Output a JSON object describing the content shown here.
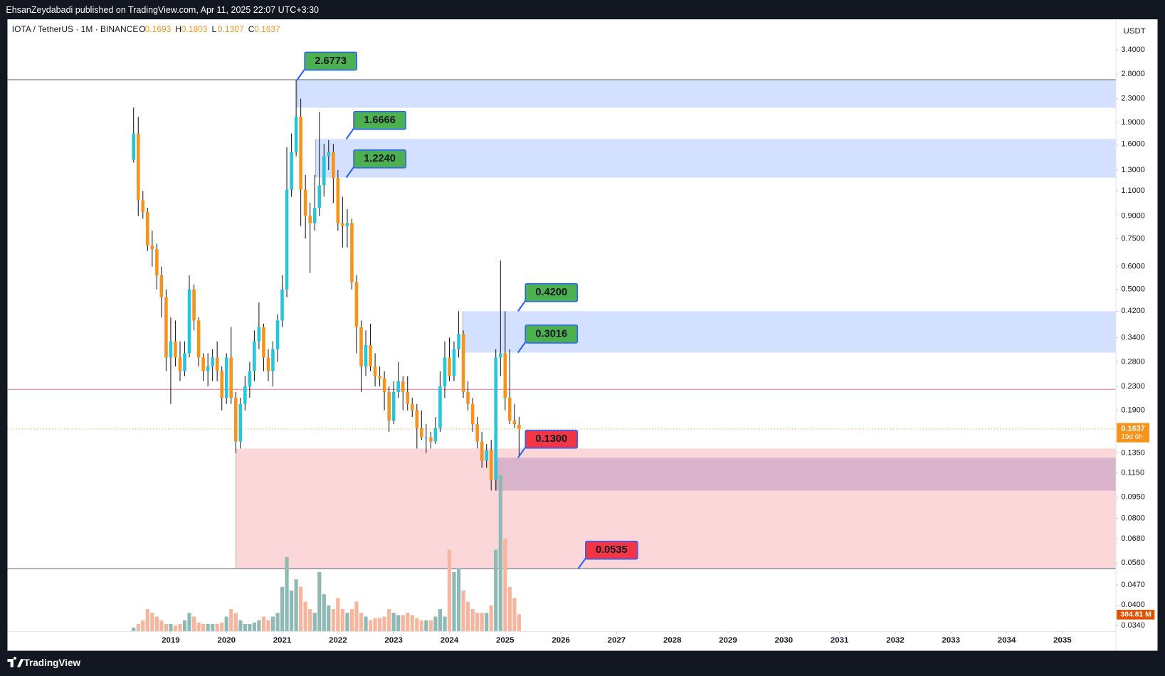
{
  "header": {
    "publisher": "EhsanZeydabadi published on TradingView.com, Apr 11, 2025 22:07 UTC+3:30"
  },
  "footer": {
    "brand": "TradingView"
  },
  "chart_data": {
    "type": "candlestick",
    "symbol": "IOTA / TetherUS · 1M · BINANCE",
    "ohlc_letters": [
      "O",
      "H",
      "L",
      "C"
    ],
    "currency": "USDT",
    "countdown": "19d 6h",
    "up_color": "#26c6da",
    "down_color": "#f7931a",
    "log_scale": true,
    "grid": false,
    "x": [
      2018.333,
      2018.417,
      2018.5,
      2018.583,
      2018.667,
      2018.75,
      2018.833,
      2018.917,
      2019,
      2019.083,
      2019.167,
      2019.25,
      2019.333,
      2019.417,
      2019.5,
      2019.583,
      2019.667,
      2019.75,
      2019.833,
      2019.917,
      2020,
      2020.083,
      2020.167,
      2020.25,
      2020.333,
      2020.417,
      2020.5,
      2020.583,
      2020.667,
      2020.75,
      2020.833,
      2020.917,
      2021,
      2021.083,
      2021.167,
      2021.25,
      2021.333,
      2021.417,
      2021.5,
      2021.583,
      2021.667,
      2021.75,
      2021.833,
      2021.917,
      2022,
      2022.083,
      2022.167,
      2022.25,
      2022.333,
      2022.417,
      2022.5,
      2022.583,
      2022.667,
      2022.75,
      2022.833,
      2022.917,
      2023,
      2023.083,
      2023.167,
      2023.25,
      2023.333,
      2023.417,
      2023.5,
      2023.583,
      2023.667,
      2023.75,
      2023.833,
      2023.917,
      2024,
      2024.083,
      2024.167,
      2024.25,
      2024.333,
      2024.417,
      2024.5,
      2024.583,
      2024.667,
      2024.75,
      2024.833,
      2024.917,
      2025,
      2025.083,
      2025.167,
      2025.25
    ],
    "open": [
      1.41,
      1.74,
      1.02,
      0.93,
      0.71,
      0.69,
      0.56,
      0.47,
      0.29,
      0.33,
      0.29,
      0.26,
      0.3,
      0.5,
      0.39,
      0.29,
      0.26,
      0.27,
      0.29,
      0.26,
      0.21,
      0.29,
      0.21,
      0.148,
      0.2,
      0.23,
      0.26,
      0.33,
      0.37,
      0.29,
      0.26,
      0.31,
      0.39,
      0.5,
      1.11,
      1.5,
      1.99,
      1.11,
      0.9,
      0.85,
      0.96,
      1.15,
      1.45,
      1.5,
      1.22,
      0.85,
      0.83,
      0.85,
      0.53,
      0.37,
      0.27,
      0.32,
      0.27,
      0.25,
      0.245,
      0.22,
      0.175,
      0.22,
      0.24,
      0.22,
      0.2,
      0.19,
      0.165,
      0.153,
      0.153,
      0.148,
      0.165,
      0.23,
      0.29,
      0.25,
      0.31,
      0.35,
      0.22,
      0.2,
      0.17,
      0.148,
      0.127,
      0.138,
      0.109,
      0.29,
      0.3,
      0.21,
      0.175,
      0.1693
    ],
    "high": [
      2.14,
      1.99,
      1.1,
      0.96,
      0.8,
      0.72,
      0.6,
      0.5,
      0.4,
      0.39,
      0.33,
      0.33,
      0.56,
      0.52,
      0.4,
      0.3,
      0.3,
      0.31,
      0.33,
      0.27,
      0.3,
      0.37,
      0.22,
      0.21,
      0.25,
      0.28,
      0.36,
      0.45,
      0.38,
      0.31,
      0.33,
      0.41,
      0.56,
      1.56,
      1.74,
      2.6773,
      2.3,
      1.25,
      1.0,
      1.25,
      2.07,
      1.6,
      1.65,
      1.6,
      1.3,
      1.05,
      0.95,
      0.88,
      0.56,
      0.39,
      0.36,
      0.38,
      0.3,
      0.27,
      0.26,
      0.23,
      0.24,
      0.28,
      0.25,
      0.25,
      0.21,
      0.2,
      0.19,
      0.17,
      0.16,
      0.18,
      0.26,
      0.33,
      0.34,
      0.33,
      0.42,
      0.36,
      0.24,
      0.21,
      0.18,
      0.16,
      0.145,
      0.15,
      0.31,
      0.63,
      0.42,
      0.31,
      0.2,
      0.1803
    ],
    "low": [
      1.38,
      0.9,
      0.88,
      0.68,
      0.6,
      0.5,
      0.4,
      0.26,
      0.2,
      0.27,
      0.24,
      0.25,
      0.29,
      0.36,
      0.27,
      0.24,
      0.23,
      0.24,
      0.24,
      0.19,
      0.2,
      0.2,
      0.135,
      0.14,
      0.19,
      0.21,
      0.24,
      0.31,
      0.26,
      0.24,
      0.23,
      0.28,
      0.37,
      0.47,
      1.05,
      1.45,
      0.83,
      0.75,
      0.57,
      0.8,
      0.9,
      1.05,
      1.3,
      1.0,
      0.8,
      0.7,
      0.7,
      0.5,
      0.3,
      0.22,
      0.25,
      0.26,
      0.23,
      0.23,
      0.19,
      0.16,
      0.17,
      0.21,
      0.19,
      0.19,
      0.18,
      0.14,
      0.15,
      0.135,
      0.14,
      0.145,
      0.16,
      0.21,
      0.24,
      0.24,
      0.29,
      0.21,
      0.19,
      0.16,
      0.14,
      0.12,
      0.12,
      0.1,
      0.1,
      0.25,
      0.19,
      0.17,
      0.165,
      0.1307
    ],
    "close": [
      1.74,
      1.02,
      0.93,
      0.71,
      0.69,
      0.56,
      0.47,
      0.29,
      0.33,
      0.29,
      0.26,
      0.3,
      0.5,
      0.39,
      0.29,
      0.26,
      0.27,
      0.29,
      0.26,
      0.21,
      0.29,
      0.21,
      0.148,
      0.2,
      0.23,
      0.26,
      0.33,
      0.37,
      0.29,
      0.26,
      0.31,
      0.39,
      0.5,
      1.11,
      1.5,
      1.99,
      1.11,
      0.9,
      0.85,
      0.96,
      1.15,
      1.45,
      1.5,
      1.22,
      0.85,
      0.83,
      0.85,
      0.53,
      0.37,
      0.27,
      0.32,
      0.27,
      0.25,
      0.245,
      0.22,
      0.175,
      0.22,
      0.24,
      0.22,
      0.2,
      0.19,
      0.165,
      0.153,
      0.153,
      0.148,
      0.165,
      0.23,
      0.29,
      0.25,
      0.31,
      0.35,
      0.22,
      0.2,
      0.17,
      0.148,
      0.127,
      0.138,
      0.109,
      0.29,
      0.3,
      0.21,
      0.175,
      0.17,
      0.1637
    ],
    "volume": {
      "values": [
        84,
        167,
        251,
        501,
        418,
        334,
        251,
        167,
        167,
        134,
        167,
        251,
        418,
        334,
        200,
        167,
        167,
        167,
        167,
        200,
        334,
        501,
        418,
        251,
        167,
        167,
        200,
        251,
        334,
        251,
        334,
        418,
        1002,
        1670,
        919,
        1169,
        1002,
        668,
        501,
        418,
        1336,
        835,
        585,
        501,
        752,
        501,
        418,
        501,
        668,
        418,
        334,
        251,
        301,
        301,
        334,
        501,
        418,
        367,
        367,
        418,
        367,
        301,
        251,
        251,
        251,
        334,
        501,
        334,
        1837,
        1336,
        1420,
        919,
        668,
        501,
        418,
        418,
        418,
        585,
        1837,
        3507,
        2088,
        1002,
        752,
        384.81
      ],
      "last_label": "384.81 M",
      "ylim": [
        0,
        13760
      ],
      "up_color": "#8fb9b4",
      "down_color": "#f6b59c",
      "tag_color": "#e65100"
    },
    "xlim": [
      2016.07,
      2035.96
    ],
    "xticks": [
      2019,
      2020,
      2021,
      2022,
      2023,
      2024,
      2025,
      2026,
      2027,
      2028,
      2029,
      2030,
      2031,
      2032,
      2033,
      2034,
      2035
    ],
    "ylim": [
      0.0324,
      4.34
    ],
    "yticks": [
      {
        "value": 3.4,
        "label": "3.4000"
      },
      {
        "value": 2.8,
        "label": "2.8000"
      },
      {
        "value": 2.3,
        "label": "2.3000"
      },
      {
        "value": 1.9,
        "label": "1.9000"
      },
      {
        "value": 1.6,
        "label": "1.6000"
      },
      {
        "value": 1.3,
        "label": "1.3000"
      },
      {
        "value": 1.1,
        "label": "1.1000"
      },
      {
        "value": 0.9,
        "label": "0.9000"
      },
      {
        "value": 0.75,
        "label": "0.7500"
      },
      {
        "value": 0.6,
        "label": "0.6000"
      },
      {
        "value": 0.5,
        "label": "0.5000"
      },
      {
        "value": 0.42,
        "label": "0.4200"
      },
      {
        "value": 0.34,
        "label": "0.3400"
      },
      {
        "value": 0.28,
        "label": "0.2800"
      },
      {
        "value": 0.23,
        "label": "0.2300"
      },
      {
        "value": 0.19,
        "label": "0.1900"
      },
      {
        "value": 0.135,
        "label": "0.1350"
      },
      {
        "value": 0.115,
        "label": "0.1150"
      },
      {
        "value": 0.095,
        "label": "0.0950"
      },
      {
        "value": 0.08,
        "label": "0.0800"
      },
      {
        "value": 0.068,
        "label": "0.0680"
      },
      {
        "value": 0.056,
        "label": "0.0560"
      },
      {
        "value": 0.047,
        "label": "0.0470"
      },
      {
        "value": 0.04,
        "label": "0.0400"
      },
      {
        "value": 0.034,
        "label": "0.0340"
      }
    ],
    "zones": [
      {
        "top": 2.6773,
        "bottom": 2.14,
        "from": 2021.27,
        "color": "rgba(41,98,255,0.2)"
      },
      {
        "top": 1.6666,
        "bottom": 1.224,
        "from": 2021.6,
        "color": "rgba(41,98,255,0.2)"
      },
      {
        "top": 0.42,
        "bottom": 0.3016,
        "from": 2024.24,
        "color": "rgba(41,98,255,0.2)"
      },
      {
        "top": 0.14,
        "bottom": 0.0535,
        "from": 2020.17,
        "color": "rgba(242,54,69,0.2)"
      },
      {
        "top": 0.13,
        "bottom": 0.1,
        "from": 2024.84,
        "color": "rgba(110,70,150,0.25)"
      }
    ],
    "lines": [
      {
        "value": 2.6773,
        "color": "#787b86"
      },
      {
        "value": 0.0535,
        "color": "#787b86"
      },
      {
        "value": 0.2245,
        "color": "#f48fb1"
      }
    ],
    "levels": [
      {
        "value": 2.6773,
        "label": "2.6773",
        "x": 2021.27,
        "color": "#4caf50"
      },
      {
        "value": 1.6666,
        "label": "1.6666",
        "x": 2022.15,
        "color": "#4caf50"
      },
      {
        "value": 1.224,
        "label": "1.2240",
        "x": 2022.15,
        "color": "#4caf50"
      },
      {
        "value": 0.42,
        "label": "0.4200",
        "x": 2025.23,
        "color": "#4caf50"
      },
      {
        "value": 0.3016,
        "label": "0.3016",
        "x": 2025.23,
        "color": "#4caf50"
      },
      {
        "value": 0.13,
        "label": "0.1300",
        "x": 2025.23,
        "color": "#f23645"
      },
      {
        "value": 0.0535,
        "label": "0.0535",
        "x": 2026.31,
        "color": "#f23645"
      }
    ]
  }
}
